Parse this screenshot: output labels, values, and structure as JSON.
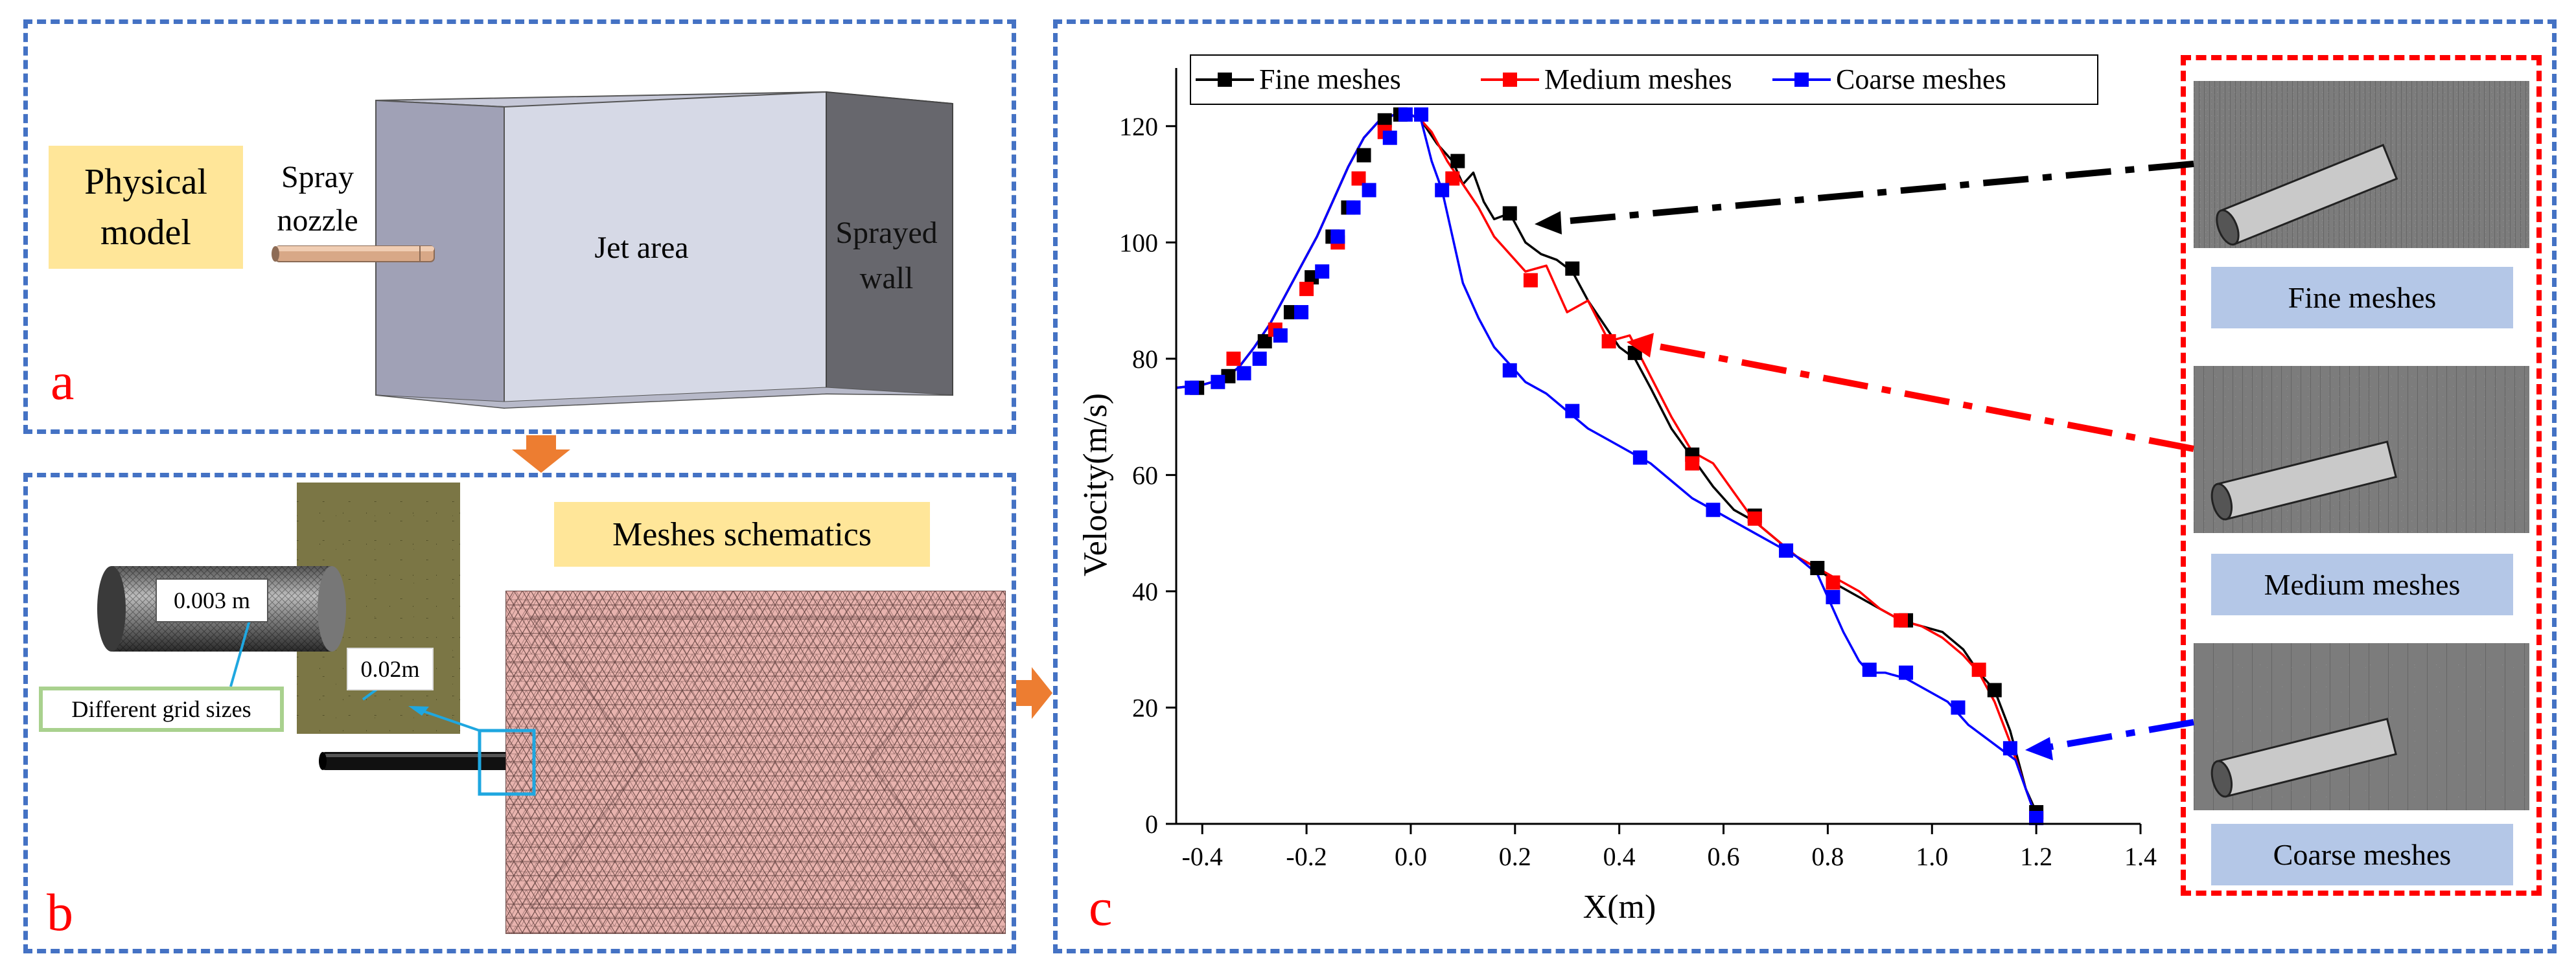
{
  "panel_a": {
    "letter": "a",
    "physical_model_label": "Physical\nmodel",
    "spray_nozzle_label": "Spray\nnozzle",
    "jet_area_label": "Jet area",
    "sprayed_wall_label": "Sprayed\nwall"
  },
  "panel_b": {
    "letter": "b",
    "title": "Meshes schematics",
    "size_label_1": "0.003 m",
    "size_label_2": "0.02m",
    "grid_sizes_label": "Different grid sizes"
  },
  "panel_c": {
    "letter": "c",
    "mesh_captions": [
      "Fine meshes",
      "Medium meshes",
      "Coarse meshes"
    ]
  },
  "colors": {
    "frame": "#4472c4",
    "fine": "#000000",
    "medium": "#ff0000",
    "coarse": "#0000ff",
    "label_bg": "#ffe699",
    "caption_bg": "#b4c7e7"
  },
  "chart_data": {
    "type": "line",
    "title": "",
    "xlabel": "X(m)",
    "ylabel": "Velocity(m/s)",
    "xlim": [
      -0.45,
      1.4
    ],
    "ylim": [
      0,
      130
    ],
    "xticks": [
      -0.4,
      -0.2,
      0.0,
      0.2,
      0.4,
      0.6,
      0.8,
      1.0,
      1.2,
      1.4
    ],
    "xtick_labels": [
      "-0.4",
      "-0.2",
      "0.0",
      "0.2",
      "0.4",
      "0.6",
      "0.8",
      "1.0",
      "1.2",
      "1.4"
    ],
    "yticks": [
      0,
      20,
      40,
      60,
      80,
      100,
      120
    ],
    "ytick_labels": [
      "0",
      "20",
      "40",
      "60",
      "80",
      "100",
      "120"
    ],
    "legend_position": "top",
    "series": [
      {
        "name": "Fine meshes",
        "color": "#000000",
        "x": [
          -0.45,
          -0.4,
          -0.36,
          -0.33,
          -0.3,
          -0.27,
          -0.24,
          -0.21,
          -0.18,
          -0.15,
          -0.12,
          -0.09,
          -0.06,
          -0.03,
          0.0,
          0.02,
          0.05,
          0.08,
          0.1,
          0.12,
          0.14,
          0.16,
          0.19,
          0.22,
          0.25,
          0.28,
          0.31,
          0.34,
          0.37,
          0.4,
          0.43,
          0.46,
          0.5,
          0.54,
          0.58,
          0.62,
          0.66,
          0.7,
          0.74,
          0.78,
          0.82,
          0.86,
          0.9,
          0.94,
          0.98,
          1.02,
          1.06,
          1.09,
          1.12,
          1.15,
          1.18,
          1.2
        ],
        "y": [
          75,
          75.5,
          76.5,
          78.5,
          82,
          86,
          91,
          96,
          101,
          107,
          113,
          118,
          121,
          122,
          122,
          121,
          117,
          114,
          110,
          112,
          107,
          104,
          105,
          100,
          98,
          97,
          95,
          90,
          86,
          82,
          80,
          75,
          68,
          63,
          58,
          54,
          52,
          49,
          46,
          44,
          41,
          39,
          37,
          35,
          34,
          33,
          30,
          26,
          23,
          16,
          6,
          2
        ],
        "markers": [
          [
            -0.41,
            75
          ],
          [
            -0.35,
            77
          ],
          [
            -0.28,
            83
          ],
          [
            -0.23,
            88
          ],
          [
            -0.19,
            94
          ],
          [
            -0.15,
            101
          ],
          [
            -0.12,
            106
          ],
          [
            -0.09,
            115
          ],
          [
            -0.05,
            121
          ],
          [
            -0.02,
            122
          ],
          [
            0.09,
            114
          ],
          [
            0.19,
            105
          ],
          [
            0.31,
            95.5
          ],
          [
            0.43,
            81
          ],
          [
            0.54,
            63.5
          ],
          [
            0.66,
            53
          ],
          [
            0.78,
            44
          ],
          [
            0.95,
            35
          ],
          [
            1.12,
            23
          ],
          [
            1.2,
            2
          ]
        ]
      },
      {
        "name": "Medium meshes",
        "color": "#ff0000",
        "x": [
          -0.45,
          -0.4,
          -0.36,
          -0.33,
          -0.3,
          -0.27,
          -0.24,
          -0.21,
          -0.18,
          -0.15,
          -0.12,
          -0.09,
          -0.06,
          -0.03,
          0.0,
          0.02,
          0.04,
          0.07,
          0.1,
          0.13,
          0.16,
          0.19,
          0.22,
          0.26,
          0.3,
          0.34,
          0.38,
          0.42,
          0.46,
          0.5,
          0.54,
          0.58,
          0.62,
          0.66,
          0.7,
          0.74,
          0.78,
          0.82,
          0.86,
          0.9,
          0.94,
          0.98,
          1.02,
          1.06,
          1.09,
          1.12,
          1.15,
          1.18,
          1.2
        ],
        "y": [
          75,
          75.5,
          76.5,
          78.5,
          82,
          86,
          91,
          96,
          101,
          107,
          113,
          118,
          121,
          122,
          122,
          121,
          119,
          114,
          110,
          106,
          101,
          98,
          95,
          96,
          88,
          90,
          83,
          84,
          77,
          70,
          64,
          62,
          57,
          52,
          49,
          46,
          44,
          42,
          40,
          37,
          35,
          34,
          32,
          29,
          26,
          21,
          14,
          6,
          1
        ],
        "markers": [
          [
            -0.34,
            80
          ],
          [
            -0.26,
            85
          ],
          [
            -0.2,
            92
          ],
          [
            -0.14,
            100
          ],
          [
            -0.1,
            111
          ],
          [
            -0.05,
            119
          ],
          [
            0.08,
            111
          ],
          [
            0.23,
            93.5
          ],
          [
            0.38,
            83
          ],
          [
            0.54,
            62
          ],
          [
            0.66,
            52.5
          ],
          [
            0.81,
            41.5
          ],
          [
            0.94,
            35
          ],
          [
            1.09,
            26.5
          ],
          [
            1.2,
            1
          ]
        ]
      },
      {
        "name": "Coarse meshes",
        "color": "#0000ff",
        "x": [
          -0.45,
          -0.4,
          -0.36,
          -0.33,
          -0.3,
          -0.27,
          -0.24,
          -0.21,
          -0.18,
          -0.15,
          -0.12,
          -0.09,
          -0.06,
          -0.03,
          0.0,
          0.02,
          0.04,
          0.06,
          0.08,
          0.1,
          0.13,
          0.16,
          0.19,
          0.22,
          0.26,
          0.3,
          0.34,
          0.38,
          0.42,
          0.46,
          0.5,
          0.54,
          0.58,
          0.62,
          0.66,
          0.7,
          0.74,
          0.78,
          0.8,
          0.83,
          0.86,
          0.88,
          0.91,
          0.95,
          0.99,
          1.03,
          1.07,
          1.1,
          1.13,
          1.16,
          1.18,
          1.2
        ],
        "y": [
          75,
          75.5,
          76.5,
          78.5,
          82,
          86,
          91,
          96,
          101,
          107,
          113,
          118,
          121,
          122,
          122,
          121,
          114,
          109,
          101,
          93,
          87,
          82,
          79,
          76,
          74,
          71,
          68,
          66,
          64,
          62,
          59,
          56,
          54,
          52,
          50,
          48,
          46,
          43,
          39,
          33,
          28,
          26,
          26,
          25,
          23,
          21,
          17,
          15,
          13,
          11,
          6,
          1
        ],
        "markers": [
          [
            -0.42,
            75
          ],
          [
            -0.37,
            76
          ],
          [
            -0.32,
            77.5
          ],
          [
            -0.29,
            80
          ],
          [
            -0.25,
            84
          ],
          [
            -0.21,
            88
          ],
          [
            -0.17,
            95
          ],
          [
            -0.14,
            101
          ],
          [
            -0.11,
            106
          ],
          [
            -0.08,
            109
          ],
          [
            -0.04,
            118
          ],
          [
            -0.01,
            122
          ],
          [
            0.02,
            122
          ],
          [
            0.06,
            109
          ],
          [
            0.19,
            78
          ],
          [
            0.31,
            71
          ],
          [
            0.44,
            63
          ],
          [
            0.58,
            54
          ],
          [
            0.72,
            47
          ],
          [
            0.81,
            39
          ],
          [
            0.88,
            26.5
          ],
          [
            0.95,
            26
          ],
          [
            1.05,
            20
          ],
          [
            1.15,
            13
          ],
          [
            1.2,
            1
          ]
        ]
      }
    ]
  }
}
